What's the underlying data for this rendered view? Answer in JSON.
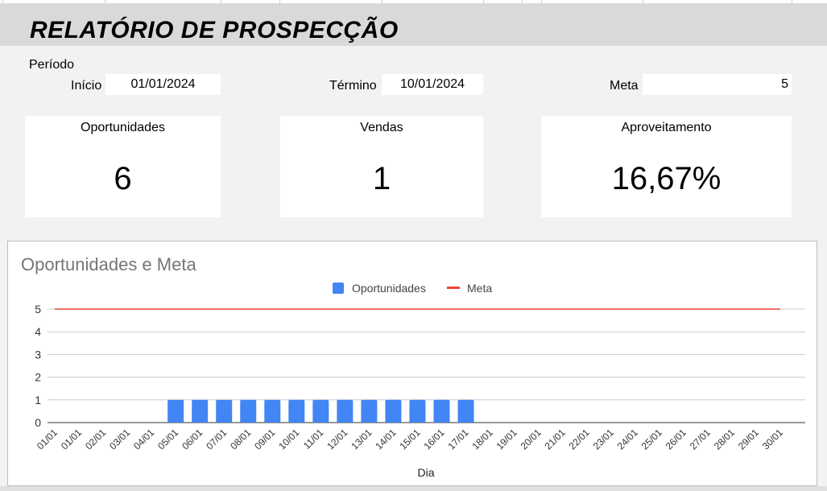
{
  "report": {
    "title": "RELATÓRIO DE PROSPECÇÃO",
    "period_label": "Período",
    "start_label": "Início",
    "start_value": "01/01/2024",
    "end_label": "Término",
    "end_value": "10/01/2024",
    "goal_label": "Meta",
    "goal_value": "5"
  },
  "cards": [
    {
      "title": "Oportunidades",
      "value": "6"
    },
    {
      "title": "Vendas",
      "value": "1"
    },
    {
      "title": "Aproveitamento",
      "value": "16,67%"
    }
  ],
  "colors": {
    "bar": "#4285f4",
    "goal_line": "#ea4335",
    "header_band": "#d9d9d9"
  },
  "chart_data": {
    "type": "bar",
    "title": "Oportunidades e Meta",
    "xlabel": "Dia",
    "ylabel": "",
    "ylim": [
      0,
      5
    ],
    "yticks": [
      0,
      1,
      2,
      3,
      4,
      5
    ],
    "grid": true,
    "legend_position": "top",
    "categories": [
      "01/01",
      "01/01",
      "02/01",
      "03/01",
      "04/01",
      "05/01",
      "06/01",
      "07/01",
      "08/01",
      "09/01",
      "10/01",
      "11/01",
      "12/01",
      "13/01",
      "14/01",
      "15/01",
      "16/01",
      "17/01",
      "18/01",
      "19/01",
      "20/01",
      "21/01",
      "22/01",
      "23/01",
      "24/01",
      "25/01",
      "26/01",
      "27/01",
      "28/01",
      "29/01",
      "30/01"
    ],
    "series": [
      {
        "name": "Oportunidades",
        "type": "bar",
        "values": [
          0,
          0,
          0,
          0,
          0,
          1,
          1,
          1,
          1,
          1,
          1,
          1,
          1,
          1,
          1,
          1,
          1,
          1,
          0,
          0,
          0,
          0,
          0,
          0,
          0,
          0,
          0,
          0,
          0,
          0,
          0
        ]
      },
      {
        "name": "Meta",
        "type": "line",
        "values": [
          5,
          5,
          5,
          5,
          5,
          5,
          5,
          5,
          5,
          5,
          5,
          5,
          5,
          5,
          5,
          5,
          5,
          5,
          5,
          5,
          5,
          5,
          5,
          5,
          5,
          5,
          5,
          5,
          5,
          5,
          5
        ]
      }
    ]
  }
}
